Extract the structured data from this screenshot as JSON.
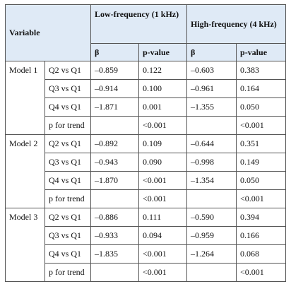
{
  "header": {
    "variable": "Variable",
    "low": "Low-frequency (1 kHz)",
    "high": "High-frequency (4 kHz)",
    "sub": [
      "β",
      "p-value",
      "β",
      "p-value"
    ]
  },
  "groups": [
    {
      "model": "Model 1",
      "rows": [
        {
          "label": "Q2 vs Q1",
          "low_beta": "–0.859",
          "low_p": "0.122",
          "high_beta": "–0.603",
          "high_p": "0.383"
        },
        {
          "label": "Q3 vs Q1",
          "low_beta": "–0.914",
          "low_p": "0.100",
          "high_beta": "–0.961",
          "high_p": "0.164"
        },
        {
          "label": "Q4 vs Q1",
          "low_beta": "–1.871",
          "low_p": "0.001",
          "high_beta": "–1.355",
          "high_p": "0.050"
        },
        {
          "label": "p for trend",
          "low_p": "<0.001",
          "high_p": "<0.001"
        }
      ]
    },
    {
      "model": "Model 2",
      "rows": [
        {
          "label": "Q2 vs Q1",
          "low_beta": "–0.892",
          "low_p": "0.109",
          "high_beta": "–0.644",
          "high_p": "0.351"
        },
        {
          "label": "Q3 vs Q1",
          "low_beta": "–0.943",
          "low_p": "0.090",
          "high_beta": "–0.998",
          "high_p": "0.149"
        },
        {
          "label": "Q4 vs Q1",
          "low_beta": "–1.870",
          "low_p": "<0.001",
          "high_beta": "–1.354",
          "high_p": "0.050"
        },
        {
          "label": "p for trend",
          "low_p": "<0.001",
          "high_p": "<0.001"
        }
      ]
    },
    {
      "model": "Model 3",
      "rows": [
        {
          "label": "Q2 vs Q1",
          "low_beta": "–0.886",
          "low_p": "0.111",
          "high_beta": "–0.590",
          "high_p": "0.394"
        },
        {
          "label": "Q3 vs Q1",
          "low_beta": "–0.933",
          "low_p": "0.094",
          "high_beta": "–0.959",
          "high_p": "0.166"
        },
        {
          "label": "Q4 vs Q1",
          "low_beta": "–1.835",
          "low_p": "<0.001",
          "high_beta": "–1.264",
          "high_p": "0.068"
        },
        {
          "label": "p for trend",
          "low_p": "<0.001",
          "high_p": "<0.001"
        }
      ]
    }
  ]
}
